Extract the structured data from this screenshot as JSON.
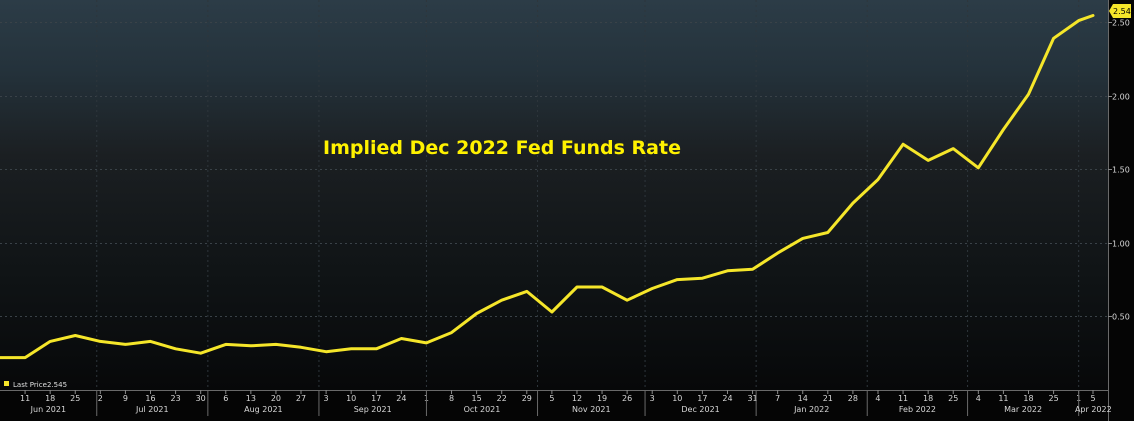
{
  "chart_data": {
    "type": "line",
    "title": "Implied Dec 2022 Fed Funds Rate",
    "line_color": "#f5e62a",
    "last_value_label": "2.545",
    "legend": {
      "label": "Last Price",
      "value": "2.545",
      "color": "#f5e62a",
      "placement": "bottom-left"
    },
    "ylim": [
      0.0,
      2.65
    ],
    "y_ticks": [
      {
        "value": 0.5,
        "label": "0.50"
      },
      {
        "value": 1.0,
        "label": "1.00"
      },
      {
        "value": 1.5,
        "label": "1.50"
      },
      {
        "value": 2.0,
        "label": "2.00"
      },
      {
        "value": 2.5,
        "label": "2.50"
      }
    ],
    "x_day_labels": [
      "11",
      "18",
      "25",
      "2",
      "9",
      "16",
      "23",
      "30",
      "6",
      "13",
      "20",
      "27",
      "3",
      "10",
      "17",
      "24",
      "1",
      "8",
      "15",
      "22",
      "29",
      "5",
      "12",
      "19",
      "26",
      "3",
      "10",
      "17",
      "24",
      "31",
      "7",
      "14",
      "21",
      "28",
      "4",
      "11",
      "18",
      "25",
      "4",
      "11",
      "18",
      "25",
      "1",
      "5"
    ],
    "x_month_labels": [
      "Jun 2021",
      "Jul 2021",
      "Aug 2021",
      "Sep 2021",
      "Oct 2021",
      "Nov 2021",
      "Dec 2021",
      "Jan 2022",
      "Feb 2022",
      "Mar 2022",
      "Apr 2022"
    ],
    "series": [
      {
        "x": [
          "2021-06-04",
          "2021-06-11",
          "2021-06-18",
          "2021-06-25",
          "2021-07-02",
          "2021-07-09",
          "2021-07-16",
          "2021-07-23",
          "2021-07-30",
          "2021-08-06",
          "2021-08-13",
          "2021-08-20",
          "2021-08-27",
          "2021-09-03",
          "2021-09-10",
          "2021-09-17",
          "2021-09-24",
          "2021-10-01",
          "2021-10-08",
          "2021-10-15",
          "2021-10-22",
          "2021-10-29",
          "2021-11-05",
          "2021-11-12",
          "2021-11-19",
          "2021-11-26",
          "2021-12-03",
          "2021-12-10",
          "2021-12-17",
          "2021-12-24",
          "2021-12-31",
          "2022-01-07",
          "2022-01-14",
          "2022-01-21",
          "2022-01-28",
          "2022-02-04",
          "2022-02-11",
          "2022-02-18",
          "2022-02-25",
          "2022-03-04",
          "2022-03-11",
          "2022-03-18",
          "2022-03-25",
          "2022-04-01",
          "2022-04-05"
        ],
        "values": [
          0.22,
          0.22,
          0.33,
          0.37,
          0.33,
          0.31,
          0.33,
          0.28,
          0.25,
          0.31,
          0.3,
          0.31,
          0.29,
          0.26,
          0.28,
          0.28,
          0.35,
          0.32,
          0.39,
          0.52,
          0.61,
          0.67,
          0.53,
          0.7,
          0.7,
          0.61,
          0.69,
          0.75,
          0.76,
          0.81,
          0.82,
          0.93,
          1.03,
          1.07,
          1.27,
          1.43,
          1.67,
          1.56,
          1.64,
          1.51,
          1.77,
          2.01,
          2.39,
          2.51,
          2.545
        ]
      }
    ]
  }
}
